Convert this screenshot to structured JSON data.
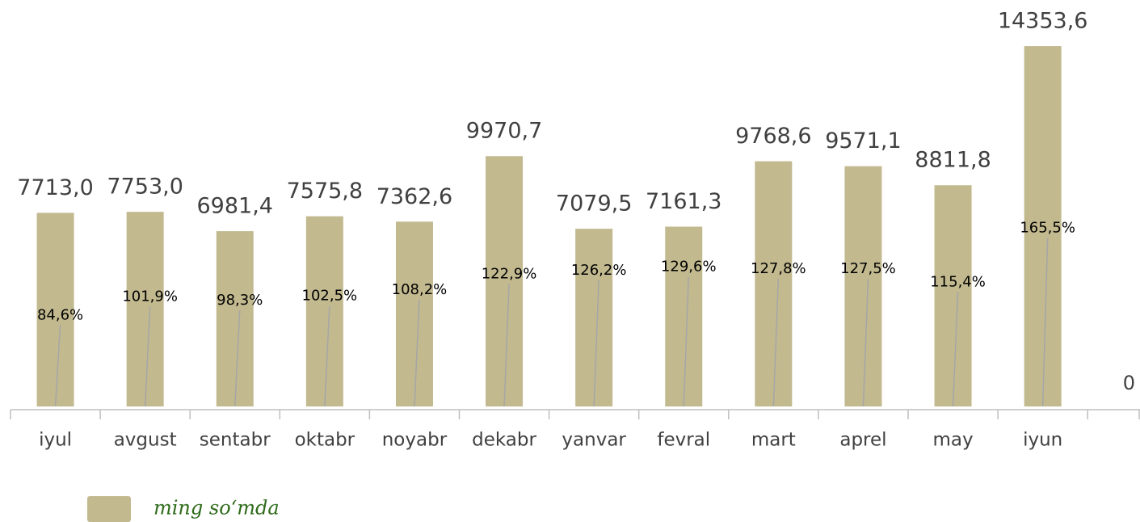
{
  "chart_data": {
    "type": "bar",
    "categories": [
      "iyul",
      "avgust",
      "sentabr",
      "oktabr",
      "noyabr",
      "dekabr",
      "yanvar",
      "fevral",
      "mart",
      "aprel",
      "may",
      "iyun"
    ],
    "series": [
      {
        "name": "ming so‘mda",
        "color": "#c2b98f",
        "values": [
          7713.0,
          7753.0,
          6981.4,
          7575.8,
          7362.6,
          9970.7,
          7079.5,
          7161.3,
          9768.6,
          9571.1,
          8811.8,
          14353.6
        ],
        "value_labels": [
          "7713,0",
          "7753,0",
          "6981,4",
          "7575,8",
          "7362,6",
          "9970,7",
          "7079,5",
          "7161,3",
          "9768,6",
          "9571,1",
          "8811,8",
          "14353,6"
        ]
      },
      {
        "axis": "y2",
        "color": "#a6a6a6",
        "values": [
          84.6,
          101.9,
          98.3,
          102.5,
          108.2,
          122.9,
          126.2,
          129.6,
          127.8,
          127.5,
          115.4,
          165.5
        ],
        "value_labels": [
          "84,6%",
          "101,9%",
          "98,3%",
          "102,5%",
          "108,2%",
          "122,9%",
          "126,2%",
          "129,6%",
          "127,8%",
          "127,5%",
          "115,4%",
          "165,5%"
        ]
      }
    ],
    "ylim": [
      0,
      15000
    ],
    "y2lim": [
      0,
      350
    ],
    "y2ticks": [
      0
    ],
    "legend": "bottom-left"
  }
}
